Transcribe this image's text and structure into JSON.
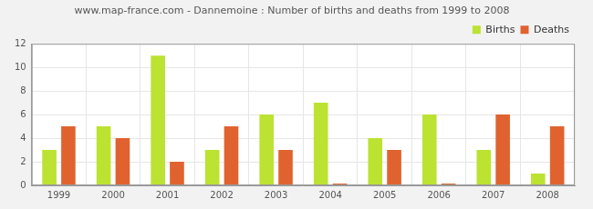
{
  "chart_data": {
    "type": "bar",
    "title": "www.map-france.com - Dannemoine : Number of births and deaths from 1999 to 2008",
    "categories": [
      "1999",
      "2000",
      "2001",
      "2002",
      "2003",
      "2004",
      "2005",
      "2006",
      "2007",
      "2008"
    ],
    "series": [
      {
        "name": "Births",
        "color": "#bce232",
        "values": [
          3,
          5,
          11,
          3,
          6,
          7,
          4,
          6,
          3,
          1
        ]
      },
      {
        "name": "Deaths",
        "color": "#e0632f",
        "values": [
          5,
          4,
          2,
          5,
          3,
          0,
          3,
          0,
          6,
          5
        ]
      }
    ],
    "ylim": [
      0,
      12
    ],
    "yticks": [
      0,
      2,
      4,
      6,
      8,
      10,
      12
    ],
    "grid": true,
    "legend": "top-right"
  }
}
